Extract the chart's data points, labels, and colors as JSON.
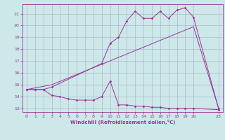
{
  "xlabel": "Windchill (Refroidissement éolien,°C)",
  "bg_color": "#cce8e8",
  "grid_color": "#aaaacc",
  "line_color": "#993399",
  "xlim": [
    -0.5,
    23.5
  ],
  "ylim": [
    12.7,
    21.8
  ],
  "yticks": [
    13,
    14,
    15,
    16,
    17,
    18,
    19,
    20,
    21
  ],
  "xticks": [
    0,
    1,
    2,
    3,
    4,
    5,
    6,
    7,
    8,
    9,
    10,
    11,
    12,
    13,
    14,
    15,
    16,
    17,
    18,
    19,
    20,
    23
  ],
  "xtick_labels": [
    "0",
    "1",
    "2",
    "3",
    "4",
    "5",
    "6",
    "7",
    "8",
    "9",
    "10",
    "11",
    "12",
    "13",
    "14",
    "15",
    "16",
    "17",
    "18",
    "19",
    "20",
    "23"
  ],
  "line1_x": [
    0,
    1,
    2,
    3,
    4,
    5,
    6,
    7,
    8,
    9,
    10,
    11,
    12,
    13,
    14,
    15,
    16,
    17,
    18,
    19,
    20,
    23
  ],
  "line1_y": [
    14.6,
    14.6,
    14.6,
    14.1,
    14.0,
    13.8,
    13.7,
    13.7,
    13.7,
    14.0,
    15.3,
    13.3,
    13.3,
    13.2,
    13.2,
    13.1,
    13.1,
    13.0,
    13.0,
    13.0,
    13.0,
    12.9
  ],
  "line2_x": [
    0,
    3,
    20,
    23
  ],
  "line2_y": [
    14.6,
    15.0,
    19.9,
    13.0
  ],
  "line3_x": [
    0,
    1,
    2,
    3,
    9,
    10,
    11,
    12,
    13,
    14,
    15,
    16,
    17,
    18,
    19,
    20,
    23
  ],
  "line3_y": [
    14.6,
    14.6,
    14.6,
    14.8,
    16.8,
    18.5,
    19.0,
    20.4,
    21.2,
    20.6,
    20.6,
    21.2,
    20.6,
    21.3,
    21.5,
    20.7,
    13.0
  ],
  "marker": "D",
  "markersize": 1.8,
  "linewidth": 0.7,
  "tick_labelsize": 4.5,
  "xlabel_fontsize": 5.0
}
